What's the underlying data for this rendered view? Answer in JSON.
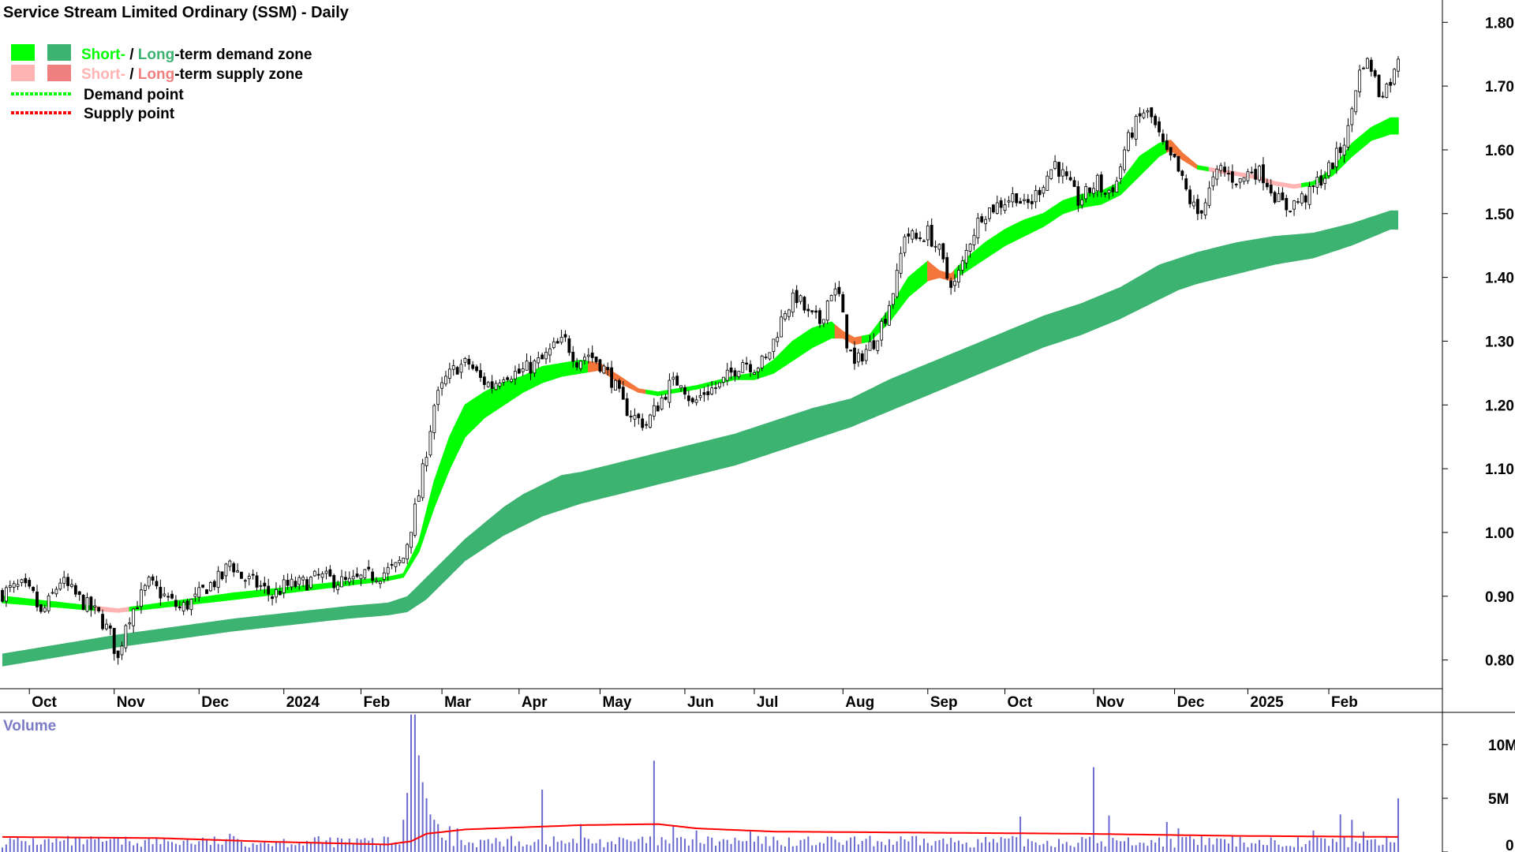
{
  "chart_data": {
    "type": "candlestick",
    "title": "Service Stream Limited Ordinary (SSM) - Daily",
    "legend": {
      "placement": "top-left",
      "items": [
        {
          "key": "demand",
          "swatches": [
            "#00ff00",
            "#3cb371"
          ],
          "parts": [
            {
              "text": "Short-",
              "color": "#00ff00"
            },
            {
              "text": " / ",
              "color": "#000000"
            },
            {
              "text": "Long",
              "color": "#3cb371"
            },
            {
              "text": "-term demand zone",
              "color": "#000000"
            }
          ]
        },
        {
          "key": "supply",
          "swatches": [
            "#ffb3b3",
            "#f08080"
          ],
          "parts": [
            {
              "text": "Short-",
              "color": "#ffb3b3"
            },
            {
              "text": " / ",
              "color": "#000000"
            },
            {
              "text": "Long",
              "color": "#f08080"
            },
            {
              "text": "-term supply zone",
              "color": "#000000"
            }
          ]
        },
        {
          "key": "demand_point",
          "line": "#00ff00",
          "parts": [
            {
              "text": "Demand point",
              "color": "#000000"
            }
          ]
        },
        {
          "key": "supply_point",
          "line": "#ff0000",
          "parts": [
            {
              "text": "Supply point",
              "color": "#000000"
            }
          ]
        }
      ]
    },
    "x_axis": {
      "labels": [
        "Oct",
        "Nov",
        "Dec",
        "2024",
        "Feb",
        "Mar",
        "Apr",
        "May",
        "Jun",
        "Jul",
        "Aug",
        "Sep",
        "Oct",
        "Nov",
        "Dec",
        "2025",
        "Feb"
      ],
      "label_sessions": [
        7,
        29,
        51,
        73,
        93,
        114,
        134,
        155,
        177,
        195,
        218,
        240,
        260,
        283,
        304,
        323,
        344
      ],
      "total_sessions": 363
    },
    "price_axis": {
      "ticks": [
        "0.80",
        "0.90",
        "1.00",
        "1.10",
        "1.20",
        "1.30",
        "1.40",
        "1.50",
        "1.60",
        "1.70",
        "1.80"
      ],
      "range": [
        0.755,
        1.835
      ],
      "grid": false
    },
    "volume_axis": {
      "label": "Volume",
      "ticks": [
        {
          "v": 10000000,
          "t": "10M"
        },
        {
          "v": 5000000,
          "t": "5M"
        },
        {
          "v": 0,
          "t": "0"
        }
      ],
      "range": [
        0,
        13000000
      ]
    },
    "price_path": [
      [
        0,
        0.905
      ],
      [
        2,
        0.91
      ],
      [
        5,
        0.915
      ],
      [
        8,
        0.9
      ],
      [
        10,
        0.87
      ],
      [
        12,
        0.89
      ],
      [
        15,
        0.925
      ],
      [
        20,
        0.895
      ],
      [
        25,
        0.87
      ],
      [
        28,
        0.84
      ],
      [
        30,
        0.8
      ],
      [
        32,
        0.86
      ],
      [
        35,
        0.89
      ],
      [
        38,
        0.92
      ],
      [
        42,
        0.9
      ],
      [
        46,
        0.88
      ],
      [
        50,
        0.895
      ],
      [
        53,
        0.915
      ],
      [
        57,
        0.93
      ],
      [
        59,
        0.955
      ],
      [
        62,
        0.93
      ],
      [
        67,
        0.915
      ],
      [
        70,
        0.9
      ],
      [
        73,
        0.915
      ],
      [
        78,
        0.92
      ],
      [
        82,
        0.93
      ],
      [
        86,
        0.925
      ],
      [
        90,
        0.92
      ],
      [
        94,
        0.93
      ],
      [
        98,
        0.935
      ],
      [
        102,
        0.945
      ],
      [
        104,
        0.96
      ],
      [
        106,
        1.01
      ],
      [
        108,
        1.06
      ],
      [
        110,
        1.13
      ],
      [
        112,
        1.2
      ],
      [
        115,
        1.24
      ],
      [
        118,
        1.26
      ],
      [
        121,
        1.265
      ],
      [
        124,
        1.24
      ],
      [
        127,
        1.23
      ],
      [
        130,
        1.25
      ],
      [
        134,
        1.25
      ],
      [
        137,
        1.26
      ],
      [
        140,
        1.27
      ],
      [
        143,
        1.29
      ],
      [
        146,
        1.3
      ],
      [
        149,
        1.27
      ],
      [
        152,
        1.28
      ],
      [
        155,
        1.265
      ],
      [
        158,
        1.24
      ],
      [
        161,
        1.2
      ],
      [
        164,
        1.18
      ],
      [
        167,
        1.17
      ],
      [
        170,
        1.2
      ],
      [
        173,
        1.23
      ],
      [
        176,
        1.24
      ],
      [
        179,
        1.2
      ],
      [
        182,
        1.22
      ],
      [
        186,
        1.23
      ],
      [
        189,
        1.25
      ],
      [
        192,
        1.27
      ],
      [
        195,
        1.26
      ],
      [
        198,
        1.27
      ],
      [
        200,
        1.3
      ],
      [
        203,
        1.35
      ],
      [
        206,
        1.37
      ],
      [
        209,
        1.34
      ],
      [
        212,
        1.33
      ],
      [
        215,
        1.38
      ],
      [
        217,
        1.37
      ],
      [
        219,
        1.3
      ],
      [
        221,
        1.26
      ],
      [
        223,
        1.28
      ],
      [
        226,
        1.3
      ],
      [
        229,
        1.34
      ],
      [
        232,
        1.4
      ],
      [
        234,
        1.47
      ],
      [
        237,
        1.46
      ],
      [
        240,
        1.47
      ],
      [
        243,
        1.44
      ],
      [
        245,
        1.4
      ],
      [
        247,
        1.39
      ],
      [
        249,
        1.42
      ],
      [
        251,
        1.46
      ],
      [
        254,
        1.5
      ],
      [
        257,
        1.51
      ],
      [
        260,
        1.52
      ],
      [
        263,
        1.53
      ],
      [
        265,
        1.51
      ],
      [
        267,
        1.52
      ],
      [
        270,
        1.55
      ],
      [
        273,
        1.58
      ],
      [
        275,
        1.56
      ],
      [
        277,
        1.54
      ],
      [
        279,
        1.52
      ],
      [
        281,
        1.53
      ],
      [
        284,
        1.55
      ],
      [
        286,
        1.53
      ],
      [
        289,
        1.55
      ],
      [
        291,
        1.6
      ],
      [
        293,
        1.63
      ],
      [
        296,
        1.66
      ],
      [
        298,
        1.65
      ],
      [
        300,
        1.62
      ],
      [
        302,
        1.59
      ],
      [
        304,
        1.58
      ],
      [
        306,
        1.55
      ],
      [
        308,
        1.52
      ],
      [
        310,
        1.5
      ],
      [
        312,
        1.52
      ],
      [
        314,
        1.55
      ],
      [
        316,
        1.57
      ],
      [
        318,
        1.56
      ],
      [
        321,
        1.55
      ],
      [
        324,
        1.57
      ],
      [
        327,
        1.56
      ],
      [
        329,
        1.54
      ],
      [
        331,
        1.52
      ],
      [
        333,
        1.51
      ],
      [
        336,
        1.52
      ],
      [
        339,
        1.53
      ],
      [
        341,
        1.55
      ],
      [
        343,
        1.56
      ],
      [
        345,
        1.58
      ],
      [
        347,
        1.6
      ],
      [
        349,
        1.63
      ],
      [
        351,
        1.7
      ],
      [
        353,
        1.74
      ],
      [
        355,
        1.73
      ],
      [
        357,
        1.69
      ],
      [
        359,
        1.7
      ],
      [
        361,
        1.72
      ],
      [
        362,
        1.75
      ]
    ],
    "short_term_zone": [
      [
        0,
        0.89,
        0.9
      ],
      [
        30,
        0.875,
        0.88
      ],
      [
        60,
        0.895,
        0.905
      ],
      [
        100,
        0.925,
        0.93
      ],
      [
        104,
        0.93,
        0.935
      ],
      [
        108,
        0.97,
        0.985
      ],
      [
        112,
        1.04,
        1.08
      ],
      [
        116,
        1.1,
        1.15
      ],
      [
        120,
        1.15,
        1.2
      ],
      [
        125,
        1.18,
        1.22
      ],
      [
        130,
        1.2,
        1.235
      ],
      [
        135,
        1.22,
        1.245
      ],
      [
        140,
        1.235,
        1.26
      ],
      [
        145,
        1.245,
        1.265
      ],
      [
        150,
        1.25,
        1.27
      ],
      [
        155,
        1.255,
        1.265
      ],
      [
        160,
        1.235,
        1.245
      ],
      [
        165,
        1.22,
        1.225
      ],
      [
        170,
        1.215,
        1.22
      ],
      [
        180,
        1.225,
        1.23
      ],
      [
        190,
        1.24,
        1.245
      ],
      [
        195,
        1.24,
        1.25
      ],
      [
        200,
        1.25,
        1.27
      ],
      [
        205,
        1.27,
        1.3
      ],
      [
        210,
        1.29,
        1.32
      ],
      [
        215,
        1.305,
        1.33
      ],
      [
        218,
        1.305,
        1.315
      ],
      [
        221,
        1.295,
        1.305
      ],
      [
        225,
        1.3,
        1.31
      ],
      [
        230,
        1.33,
        1.35
      ],
      [
        235,
        1.37,
        1.4
      ],
      [
        240,
        1.395,
        1.425
      ],
      [
        243,
        1.4,
        1.41
      ],
      [
        246,
        1.395,
        1.405
      ],
      [
        250,
        1.41,
        1.43
      ],
      [
        255,
        1.43,
        1.455
      ],
      [
        260,
        1.45,
        1.475
      ],
      [
        265,
        1.465,
        1.49
      ],
      [
        270,
        1.48,
        1.5
      ],
      [
        275,
        1.5,
        1.52
      ],
      [
        280,
        1.51,
        1.53
      ],
      [
        285,
        1.515,
        1.535
      ],
      [
        290,
        1.53,
        1.55
      ],
      [
        295,
        1.56,
        1.59
      ],
      [
        300,
        1.59,
        1.61
      ],
      [
        303,
        1.6,
        1.615
      ],
      [
        306,
        1.585,
        1.595
      ],
      [
        310,
        1.57,
        1.575
      ],
      [
        315,
        1.565,
        1.57
      ],
      [
        320,
        1.56,
        1.565
      ],
      [
        325,
        1.555,
        1.56
      ],
      [
        330,
        1.545,
        1.55
      ],
      [
        335,
        1.54,
        1.545
      ],
      [
        340,
        1.545,
        1.55
      ],
      [
        345,
        1.56,
        1.57
      ],
      [
        350,
        1.59,
        1.61
      ],
      [
        355,
        1.615,
        1.635
      ],
      [
        360,
        1.625,
        1.65
      ]
    ],
    "long_term_zone": [
      [
        0,
        0.79,
        0.81
      ],
      [
        30,
        0.82,
        0.84
      ],
      [
        60,
        0.845,
        0.865
      ],
      [
        90,
        0.865,
        0.885
      ],
      [
        100,
        0.87,
        0.89
      ],
      [
        105,
        0.875,
        0.9
      ],
      [
        110,
        0.895,
        0.93
      ],
      [
        115,
        0.925,
        0.96
      ],
      [
        120,
        0.955,
        0.99
      ],
      [
        125,
        0.975,
        1.015
      ],
      [
        130,
        0.995,
        1.04
      ],
      [
        135,
        1.01,
        1.06
      ],
      [
        140,
        1.025,
        1.075
      ],
      [
        145,
        1.035,
        1.09
      ],
      [
        150,
        1.045,
        1.095
      ],
      [
        160,
        1.06,
        1.11
      ],
      [
        170,
        1.075,
        1.125
      ],
      [
        180,
        1.09,
        1.14
      ],
      [
        190,
        1.105,
        1.155
      ],
      [
        200,
        1.125,
        1.175
      ],
      [
        210,
        1.145,
        1.195
      ],
      [
        220,
        1.165,
        1.21
      ],
      [
        230,
        1.19,
        1.24
      ],
      [
        240,
        1.215,
        1.265
      ],
      [
        250,
        1.24,
        1.29
      ],
      [
        260,
        1.265,
        1.315
      ],
      [
        270,
        1.29,
        1.34
      ],
      [
        280,
        1.31,
        1.36
      ],
      [
        290,
        1.335,
        1.385
      ],
      [
        300,
        1.365,
        1.42
      ],
      [
        305,
        1.38,
        1.43
      ],
      [
        310,
        1.39,
        1.44
      ],
      [
        320,
        1.405,
        1.455
      ],
      [
        330,
        1.42,
        1.465
      ],
      [
        340,
        1.43,
        1.47
      ],
      [
        350,
        1.45,
        1.485
      ],
      [
        360,
        1.475,
        1.505
      ]
    ],
    "short_supply_sections": [
      [
        24,
        33
      ],
      [
        152,
        167
      ],
      [
        216,
        223
      ],
      [
        240,
        247
      ],
      [
        302,
        310
      ],
      [
        313,
        337
      ]
    ],
    "volume": {
      "base": 1200000,
      "moving_average_color": "#ff0000",
      "bar_color": "#6a6ad0",
      "spikes": [
        [
          59,
          1700000
        ],
        [
          104,
          3000000
        ],
        [
          105,
          5500000
        ],
        [
          106,
          12800000
        ],
        [
          107,
          12800000
        ],
        [
          108,
          9000000
        ],
        [
          109,
          6500000
        ],
        [
          110,
          5000000
        ],
        [
          111,
          3500000
        ],
        [
          112,
          3000000
        ],
        [
          113,
          2600000
        ],
        [
          116,
          2400000
        ],
        [
          118,
          2200000
        ],
        [
          140,
          5800000
        ],
        [
          150,
          2600000
        ],
        [
          169,
          8500000
        ],
        [
          174,
          2400000
        ],
        [
          180,
          2000000
        ],
        [
          194,
          1900000
        ],
        [
          264,
          3300000
        ],
        [
          283,
          7900000
        ],
        [
          287,
          3400000
        ],
        [
          302,
          2800000
        ],
        [
          305,
          2200000
        ],
        [
          340,
          2000000
        ],
        [
          347,
          3500000
        ],
        [
          350,
          3000000
        ],
        [
          353,
          1900000
        ],
        [
          362,
          5000000
        ]
      ],
      "ma_path": [
        [
          0,
          1400000
        ],
        [
          40,
          1300000
        ],
        [
          70,
          950000
        ],
        [
          100,
          700000
        ],
        [
          106,
          1000000
        ],
        [
          110,
          1700000
        ],
        [
          120,
          2100000
        ],
        [
          150,
          2500000
        ],
        [
          170,
          2600000
        ],
        [
          180,
          2200000
        ],
        [
          200,
          1900000
        ],
        [
          240,
          1800000
        ],
        [
          280,
          1700000
        ],
        [
          320,
          1500000
        ],
        [
          362,
          1400000
        ]
      ]
    }
  }
}
